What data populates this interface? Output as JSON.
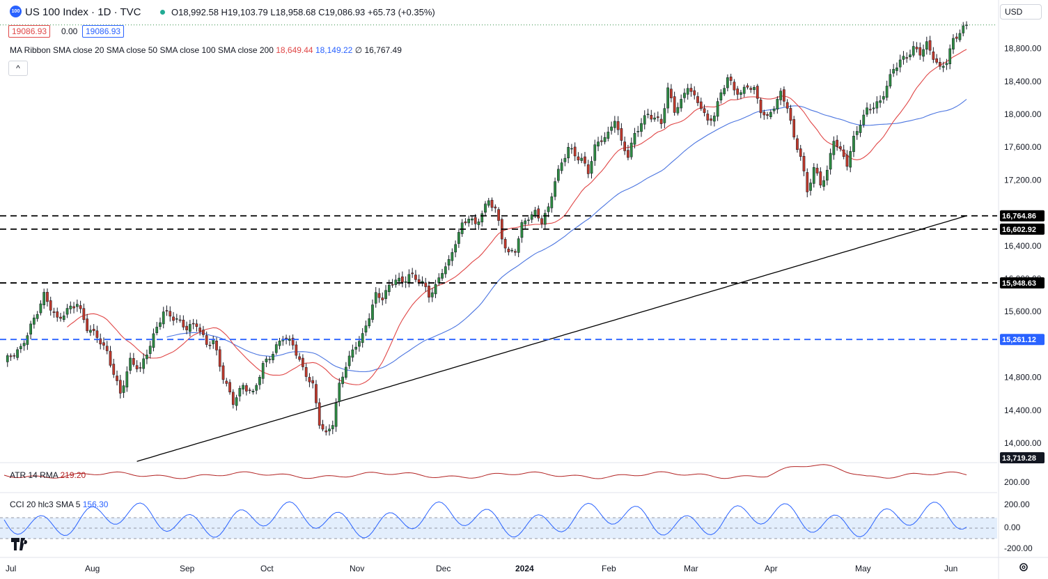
{
  "header": {
    "logo_text": "100",
    "symbol": "US 100 Index · 1D · TVC",
    "ohlc": "O18,992.58  H19,103.79  L18,958.68  C19,086.93  +65.73 (+0.35%)",
    "bid": "19086.93",
    "spread": "0.00",
    "ask": "19086.93",
    "currency": "USD",
    "collapse_label": "^"
  },
  "indicators": {
    "ma_label": "MA Ribbon SMA close 20 SMA close 50 SMA close 100 SMA close 200",
    "ma_v1": "18,649.44",
    "ma_v2": "18,149.22",
    "ma_sep": "∅",
    "ma_v3": "16,767.49",
    "atr_label": "ATR 14 RMA",
    "atr_value": "219.20",
    "cci_label": "CCI 20 hlc3 SMA 5",
    "cci_value": "156.30"
  },
  "colors": {
    "up": "#2e8b42",
    "down": "#c0392b",
    "sma20": "#e04646",
    "sma50": "#4a74e0",
    "sma200": "#000000",
    "atr": "#b22222",
    "cci": "#2962ff",
    "cci_band": "#e3eefc",
    "hline_black": "#000000",
    "hline_blue": "#2962ff"
  },
  "chart_data": {
    "type": "candlestick",
    "x_labels": [
      "Jul",
      "Aug",
      "Sep",
      "Oct",
      "Nov",
      "Dec",
      "2024",
      "Feb",
      "Mar",
      "Apr",
      "May",
      "Jun"
    ],
    "y_ticks": [
      "18,800.00",
      "18,400.00",
      "18,000.00",
      "17,600.00",
      "17,200.00",
      "16,400.00",
      "16,000.00",
      "15,600.00",
      "14,800.00",
      "14,400.00",
      "14,000.00"
    ],
    "price_tick_values": [
      18800,
      18400,
      18000,
      17600,
      17200,
      16400,
      16000,
      15600,
      14800,
      14400,
      14000
    ],
    "horizontal_levels": [
      {
        "value": 16764.86,
        "label": "16,764.86",
        "color": "black"
      },
      {
        "value": 16602.92,
        "label": "16,602.92",
        "color": "black"
      },
      {
        "value": 15948.63,
        "label": "15,948.63",
        "color": "black"
      },
      {
        "value": 15261.12,
        "label": "15,261.12",
        "color": "blue"
      }
    ],
    "last_price_dotted": 19086.93,
    "sma200_last_label": "13,719.28",
    "atr_ticks": [
      "200.00"
    ],
    "cci_ticks": [
      "200.00",
      "0.00",
      "-200.00"
    ],
    "ohlc_anchors": [
      {
        "d": 0,
        "c": 15000
      },
      {
        "d": 5,
        "c": 15150
      },
      {
        "d": 10,
        "c": 15600
      },
      {
        "d": 12,
        "c": 15800
      },
      {
        "d": 16,
        "c": 15500
      },
      {
        "d": 20,
        "c": 15650
      },
      {
        "d": 22,
        "c": 15700
      },
      {
        "d": 25,
        "c": 15400
      },
      {
        "d": 28,
        "c": 15300
      },
      {
        "d": 31,
        "c": 15100
      },
      {
        "d": 35,
        "c": 14600
      },
      {
        "d": 38,
        "c": 15000
      },
      {
        "d": 41,
        "c": 14900
      },
      {
        "d": 45,
        "c": 15300
      },
      {
        "d": 48,
        "c": 15600
      },
      {
        "d": 52,
        "c": 15500
      },
      {
        "d": 55,
        "c": 15400
      },
      {
        "d": 58,
        "c": 15450
      },
      {
        "d": 61,
        "c": 15200
      },
      {
        "d": 63,
        "c": 15250
      },
      {
        "d": 66,
        "c": 14800
      },
      {
        "d": 69,
        "c": 14500
      },
      {
        "d": 72,
        "c": 14700
      },
      {
        "d": 75,
        "c": 14600
      },
      {
        "d": 78,
        "c": 14950
      },
      {
        "d": 81,
        "c": 15100
      },
      {
        "d": 84,
        "c": 15300
      },
      {
        "d": 87,
        "c": 15200
      },
      {
        "d": 90,
        "c": 14900
      },
      {
        "d": 93,
        "c": 14700
      },
      {
        "d": 95,
        "c": 14250
      },
      {
        "d": 97,
        "c": 14100
      },
      {
        "d": 99,
        "c": 14250
      },
      {
        "d": 101,
        "c": 14700
      },
      {
        "d": 103,
        "c": 14950
      },
      {
        "d": 106,
        "c": 15200
      },
      {
        "d": 108,
        "c": 15300
      },
      {
        "d": 110,
        "c": 15550
      },
      {
        "d": 112,
        "c": 15800
      },
      {
        "d": 114,
        "c": 15770
      },
      {
        "d": 116,
        "c": 15900
      },
      {
        "d": 118,
        "c": 16000
      },
      {
        "d": 120,
        "c": 15950
      },
      {
        "d": 122,
        "c": 16050
      },
      {
        "d": 124,
        "c": 16000
      },
      {
        "d": 126,
        "c": 15950
      },
      {
        "d": 128,
        "c": 15800
      },
      {
        "d": 130,
        "c": 15900
      },
      {
        "d": 132,
        "c": 16100
      },
      {
        "d": 134,
        "c": 16200
      },
      {
        "d": 136,
        "c": 16450
      },
      {
        "d": 138,
        "c": 16650
      },
      {
        "d": 140,
        "c": 16750
      },
      {
        "d": 142,
        "c": 16650
      },
      {
        "d": 144,
        "c": 16800
      },
      {
        "d": 146,
        "c": 16950
      },
      {
        "d": 148,
        "c": 16850
      },
      {
        "d": 150,
        "c": 16500
      },
      {
        "d": 152,
        "c": 16300
      },
      {
        "d": 154,
        "c": 16350
      },
      {
        "d": 156,
        "c": 16650
      },
      {
        "d": 158,
        "c": 16750
      },
      {
        "d": 160,
        "c": 16800
      },
      {
        "d": 162,
        "c": 16700
      },
      {
        "d": 164,
        "c": 16850
      },
      {
        "d": 166,
        "c": 17200
      },
      {
        "d": 168,
        "c": 17400
      },
      {
        "d": 170,
        "c": 17600
      },
      {
        "d": 172,
        "c": 17500
      },
      {
        "d": 174,
        "c": 17450
      },
      {
        "d": 176,
        "c": 17300
      },
      {
        "d": 178,
        "c": 17600
      },
      {
        "d": 180,
        "c": 17700
      },
      {
        "d": 182,
        "c": 17750
      },
      {
        "d": 184,
        "c": 17950
      },
      {
        "d": 186,
        "c": 17650
      },
      {
        "d": 188,
        "c": 17500
      },
      {
        "d": 190,
        "c": 17750
      },
      {
        "d": 192,
        "c": 17900
      },
      {
        "d": 194,
        "c": 18000
      },
      {
        "d": 196,
        "c": 17950
      },
      {
        "d": 198,
        "c": 17900
      },
      {
        "d": 200,
        "c": 18300
      },
      {
        "d": 202,
        "c": 18050
      },
      {
        "d": 204,
        "c": 18150
      },
      {
        "d": 206,
        "c": 18350
      },
      {
        "d": 208,
        "c": 18200
      },
      {
        "d": 210,
        "c": 18100
      },
      {
        "d": 212,
        "c": 17900
      },
      {
        "d": 214,
        "c": 18000
      },
      {
        "d": 216,
        "c": 18250
      },
      {
        "d": 218,
        "c": 18450
      },
      {
        "d": 220,
        "c": 18300
      },
      {
        "d": 222,
        "c": 18250
      },
      {
        "d": 224,
        "c": 18350
      },
      {
        "d": 226,
        "c": 18300
      },
      {
        "d": 228,
        "c": 18050
      },
      {
        "d": 230,
        "c": 17950
      },
      {
        "d": 232,
        "c": 18100
      },
      {
        "d": 234,
        "c": 18250
      },
      {
        "d": 236,
        "c": 18100
      },
      {
        "d": 238,
        "c": 17700
      },
      {
        "d": 240,
        "c": 17500
      },
      {
        "d": 242,
        "c": 17050
      },
      {
        "d": 244,
        "c": 17350
      },
      {
        "d": 246,
        "c": 17150
      },
      {
        "d": 248,
        "c": 17300
      },
      {
        "d": 250,
        "c": 17700
      },
      {
        "d": 252,
        "c": 17550
      },
      {
        "d": 254,
        "c": 17400
      },
      {
        "d": 256,
        "c": 17700
      },
      {
        "d": 258,
        "c": 17900
      },
      {
        "d": 260,
        "c": 18050
      },
      {
        "d": 262,
        "c": 18100
      },
      {
        "d": 264,
        "c": 18150
      },
      {
        "d": 266,
        "c": 18350
      },
      {
        "d": 268,
        "c": 18550
      },
      {
        "d": 270,
        "c": 18650
      },
      {
        "d": 272,
        "c": 18700
      },
      {
        "d": 274,
        "c": 18800
      },
      {
        "d": 276,
        "c": 18750
      },
      {
        "d": 278,
        "c": 18850
      },
      {
        "d": 280,
        "c": 18700
      },
      {
        "d": 282,
        "c": 18550
      },
      {
        "d": 284,
        "c": 18650
      },
      {
        "d": 286,
        "c": 18900
      },
      {
        "d": 288,
        "c": 19000
      },
      {
        "d": 290,
        "c": 19087
      }
    ]
  }
}
